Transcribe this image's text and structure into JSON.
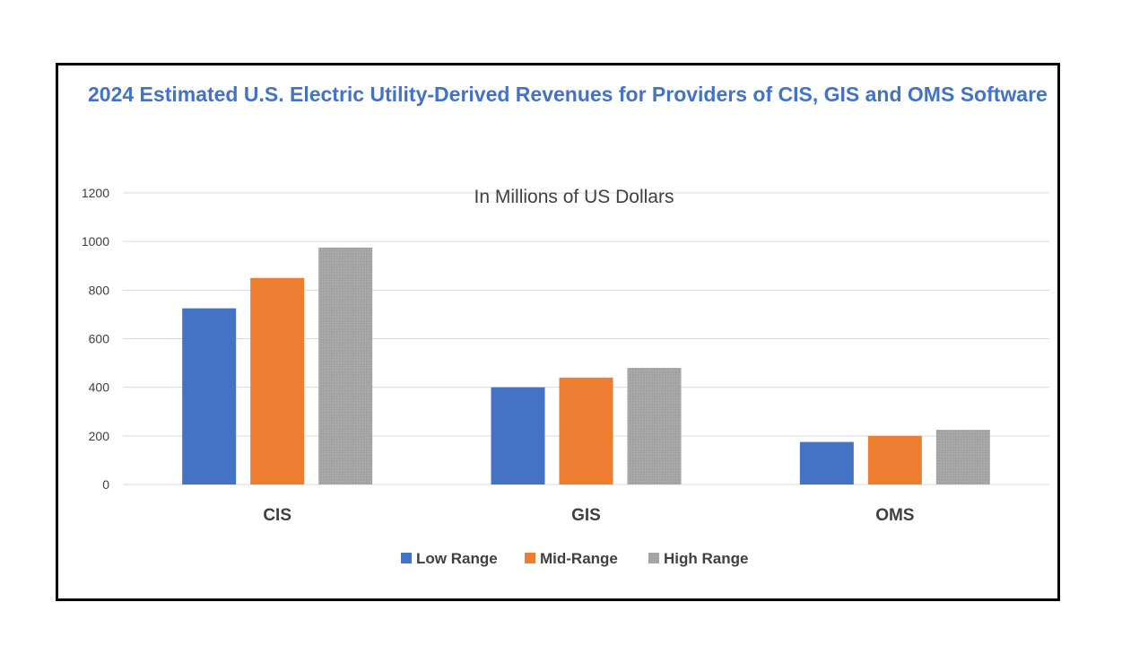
{
  "chart_data": {
    "type": "bar",
    "title": "2024 Estimated U.S. Electric Utility-Derived Revenues for Providers of CIS, GIS and OMS Software",
    "subtitle": "In Millions of US Dollars",
    "categories": [
      "CIS",
      "GIS",
      "OMS"
    ],
    "series": [
      {
        "name": "Low Range",
        "values": [
          725,
          400,
          175
        ],
        "color": "#4472c4"
      },
      {
        "name": "Mid-Range",
        "values": [
          850,
          440,
          200
        ],
        "color": "#ed7d31"
      },
      {
        "name": "High Range",
        "values": [
          975,
          480,
          225
        ],
        "color": "#a5a5a5"
      }
    ],
    "ylim": [
      0,
      1200
    ],
    "yticks": [
      0,
      200,
      400,
      600,
      800,
      1000,
      1200
    ],
    "grid": true,
    "legend": "bottom"
  }
}
